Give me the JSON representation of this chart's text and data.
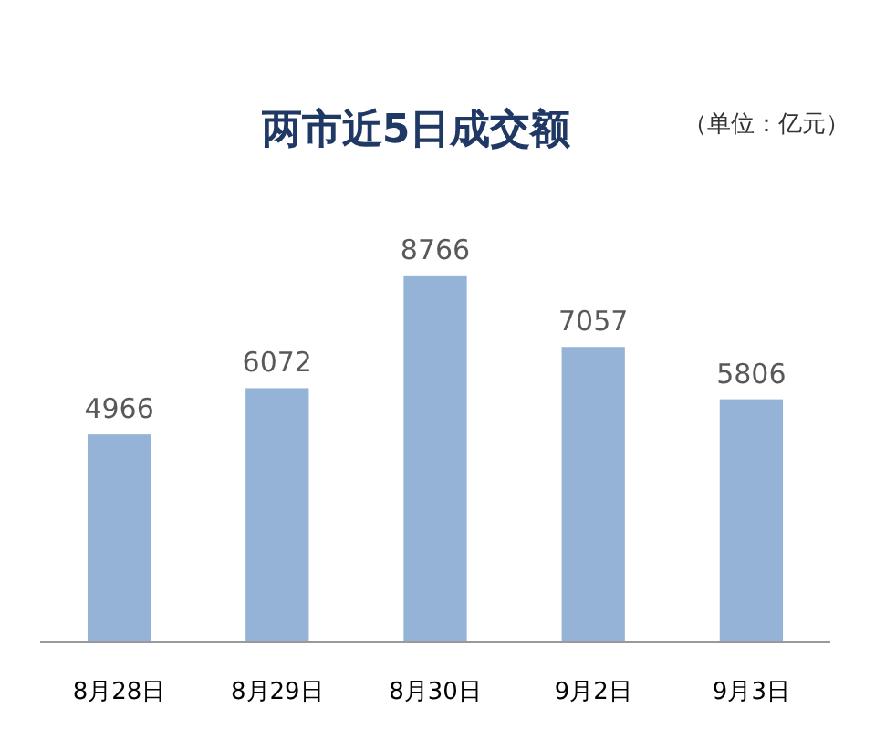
{
  "chart_data": {
    "type": "bar",
    "title": "两市近5日成交额",
    "subtitle": "（单位：亿元）",
    "categories": [
      "8月28日",
      "8月29日",
      "8月30日",
      "9月2日",
      "9月3日"
    ],
    "values": [
      4966,
      6072,
      8766,
      7057,
      5806
    ],
    "color": "#95b3d7",
    "data_labels": true,
    "grid": false
  }
}
